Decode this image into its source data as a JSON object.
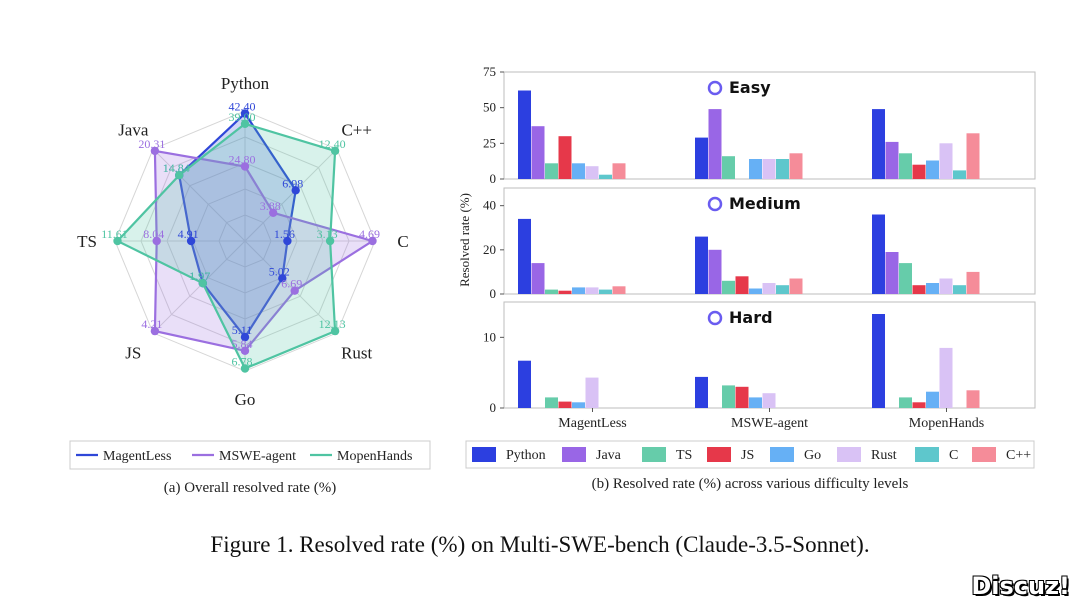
{
  "chart_data": [
    {
      "type": "radar",
      "id": "a",
      "caption": "(a) Overall resolved rate (%)",
      "axes": [
        "Python",
        "C++",
        "C",
        "Rust",
        "Go",
        "JS",
        "TS",
        "Java"
      ],
      "series": [
        {
          "name": "MagentLess",
          "color": "#2f47d8",
          "values": [
            42.4,
            6.98,
            1.56,
            5.02,
            5.11,
            1.97,
            4.91,
            14.84
          ]
        },
        {
          "name": "MSWE-agent",
          "color": "#9b6fe0",
          "values": [
            24.8,
            3.88,
            4.69,
            6.69,
            5.84,
            4.21,
            8.04,
            20.31
          ]
        },
        {
          "name": "MopenHands",
          "color": "#4fc4a2",
          "values": [
            39.0,
            12.4,
            3.13,
            12.13,
            6.78,
            1.97,
            11.61,
            14.84
          ]
        }
      ]
    },
    {
      "type": "bar",
      "id": "b",
      "caption": "(b) Resolved rate (%) across various difficulty levels",
      "ylabel": "Resolved rate (%)",
      "categories": [
        "MagentLess",
        "MSWE-agent",
        "MopenHands"
      ],
      "languages": [
        "Python",
        "Java",
        "TS",
        "JS",
        "Go",
        "Rust",
        "C",
        "C++"
      ],
      "colors": [
        "#2c3fe0",
        "#9966e6",
        "#66ccaa",
        "#e6384a",
        "#66b0f5",
        "#d9c2f5",
        "#5ec7cc",
        "#f58c99"
      ],
      "panels": [
        {
          "title": "Easy",
          "ylim": [
            0,
            75
          ],
          "yticks": [
            0,
            25,
            50,
            75
          ],
          "values": [
            [
              62,
              37,
              11,
              30,
              11,
              9,
              3,
              11
            ],
            [
              29,
              49,
              16,
              0,
              14,
              14,
              14,
              18
            ],
            [
              49,
              26,
              18,
              10,
              13,
              25,
              6,
              32
            ]
          ]
        },
        {
          "title": "Medium",
          "ylim": [
            0,
            48
          ],
          "yticks": [
            0,
            20,
            40
          ],
          "values": [
            [
              34,
              14,
              2,
              1.5,
              3,
              3,
              2,
              3.5
            ],
            [
              26,
              20,
              6,
              8,
              2.5,
              5,
              4,
              7
            ],
            [
              36,
              19,
              14,
              4,
              5,
              7,
              4,
              10
            ]
          ]
        },
        {
          "title": "Hard",
          "ylim": [
            0,
            15
          ],
          "yticks": [
            0,
            10
          ],
          "values": [
            [
              6.7,
              0,
              1.5,
              0.9,
              0.8,
              4.3,
              0,
              0
            ],
            [
              4.4,
              0,
              3.2,
              3,
              1.5,
              2.1,
              0,
              0
            ],
            [
              13.3,
              0,
              1.5,
              0.8,
              2.3,
              8.5,
              0,
              2.5
            ]
          ]
        }
      ]
    }
  ],
  "figure_caption": "Figure 1. Resolved rate (%) on Multi-SWE-bench (Claude-3.5-Sonnet).",
  "watermark": "Discuz!"
}
